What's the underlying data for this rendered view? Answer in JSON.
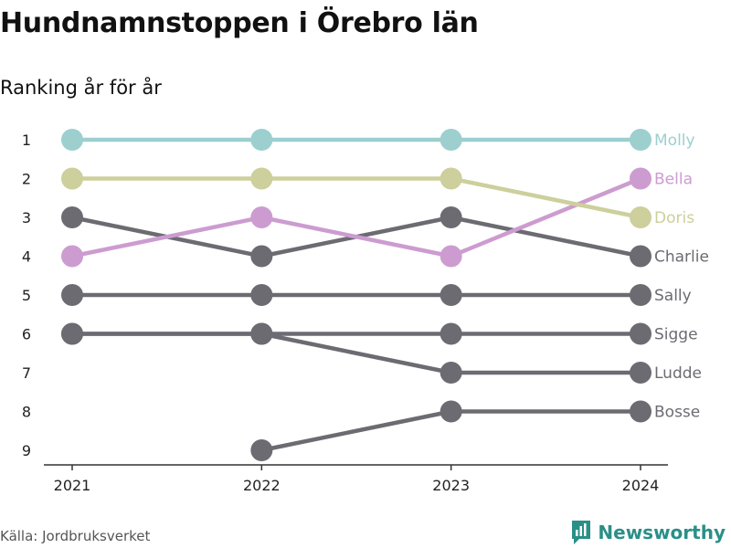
{
  "title": "Hundnamnstoppen i Örebro län",
  "subtitle": "Ranking år för år",
  "source": "Källa: Jordbruksverket",
  "brand": "Newsworthy",
  "chart_data": {
    "type": "line",
    "x": [
      "2021",
      "2022",
      "2023",
      "2024"
    ],
    "y_ticks": [
      "1",
      "2",
      "3",
      "4",
      "5",
      "6",
      "7",
      "8",
      "9"
    ],
    "ylim": [
      1,
      9
    ],
    "y_reversed": true,
    "grid": false,
    "legend": "labels at line ends",
    "series": [
      {
        "name": "Molly",
        "color": "#9dcfcf",
        "values": [
          1,
          1,
          1,
          1
        ]
      },
      {
        "name": "Bella",
        "color": "#cc9cd0",
        "values": [
          4,
          3,
          4,
          2
        ]
      },
      {
        "name": "Doris",
        "color": "#cdcf9c",
        "values": [
          2,
          2,
          2,
          3
        ]
      },
      {
        "name": "Charlie",
        "color": "#6c6b72",
        "values": [
          3,
          4,
          3,
          4
        ]
      },
      {
        "name": "Sally",
        "color": "#6c6b72",
        "values": [
          5,
          5,
          5,
          5
        ]
      },
      {
        "name": "Sigge",
        "color": "#6c6b72",
        "values": [
          6,
          6,
          6,
          6
        ]
      },
      {
        "name": "Ludde",
        "color": "#6c6b72",
        "values": [
          6,
          6,
          7,
          7
        ]
      },
      {
        "name": "Bosse",
        "color": "#6c6b72",
        "values": [
          null,
          9,
          8,
          8
        ]
      }
    ]
  }
}
